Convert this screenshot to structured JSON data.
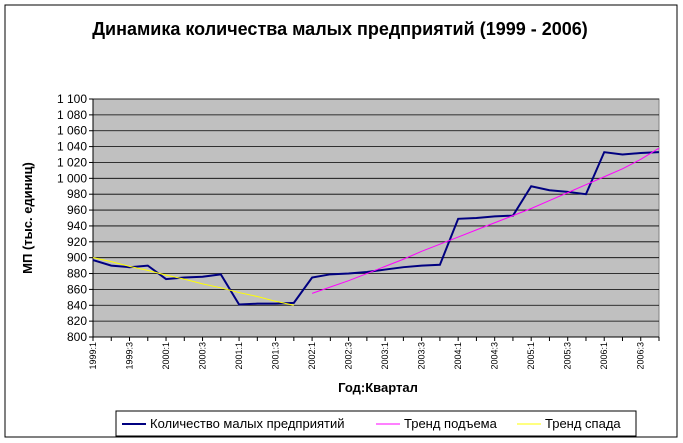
{
  "chart_data": {
    "type": "line",
    "title": "Динамика количества малых предприятий (1999 - 2006)",
    "x_label": "Год:Квартал",
    "y_label": "МП (тыс. единиц)",
    "categories": [
      "1999:1",
      null,
      "1999:3",
      null,
      "2000:1",
      null,
      "2000:3",
      null,
      "2001:1",
      null,
      "2001:3",
      null,
      "2002:1",
      null,
      "2002:3",
      null,
      "2003:1",
      null,
      "2003:3",
      null,
      "2004:1",
      null,
      "2004:3",
      null,
      "2005:1",
      null,
      "2005:3",
      null,
      "2006:1",
      null,
      "2006:3",
      null
    ],
    "series": [
      {
        "name": "Количество малых предприятий",
        "color": "#000080",
        "values": [
          897,
          890,
          888,
          890,
          873,
          875,
          876,
          879,
          841,
          842,
          842,
          843,
          875,
          879,
          880,
          882,
          885,
          888,
          890,
          891,
          949,
          950,
          952,
          953,
          990,
          985,
          983,
          980,
          1033,
          1030,
          1032,
          1033
        ]
      },
      {
        "name": "Тренд подъема",
        "color": "#ff00ff",
        "values": [
          null,
          null,
          null,
          null,
          null,
          null,
          null,
          null,
          null,
          null,
          null,
          null,
          855,
          863,
          871,
          880,
          889,
          898,
          908,
          917,
          926,
          935,
          944,
          953,
          962,
          972,
          982,
          992,
          1002,
          1012,
          1024,
          1038
        ]
      },
      {
        "name": "Тренд спада",
        "color": "#ffff00",
        "values": [
          900,
          895,
          889,
          884,
          878,
          873,
          867,
          862,
          856,
          851,
          845,
          840,
          null,
          null,
          null,
          null,
          null,
          null,
          null,
          null,
          null,
          null,
          null,
          null,
          null,
          null,
          null,
          null,
          null,
          null,
          null,
          null
        ]
      }
    ],
    "ylim": [
      800,
      1100
    ],
    "yticks": [
      800,
      820,
      840,
      860,
      880,
      900,
      920,
      940,
      960,
      980,
      {
        "value": 1000,
        "label": "1 000"
      },
      {
        "value": 1020,
        "label": "1 020"
      },
      {
        "value": 1040,
        "label": "1 040"
      },
      {
        "value": 1060,
        "label": "1 060"
      },
      {
        "value": 1080,
        "label": "1 080"
      },
      {
        "value": 1100,
        "label": "1 100"
      }
    ],
    "grid": true,
    "legend": "bottom"
  }
}
